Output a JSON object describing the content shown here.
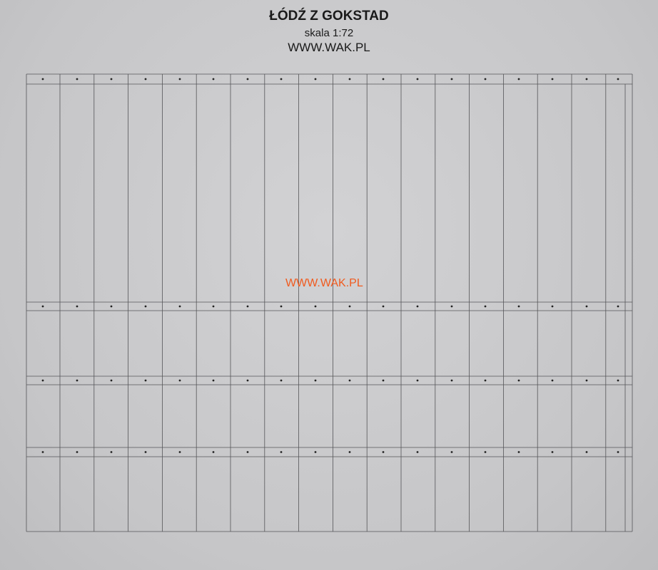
{
  "sheet": {
    "title": "ŁÓDŹ Z GOKSTAD",
    "scale": "skala 1:72",
    "website": "WWW.WAK.PL",
    "watermark": "WWW.WAK.PL",
    "watermark_color": "#f05a1e",
    "line_color": "#555558"
  }
}
